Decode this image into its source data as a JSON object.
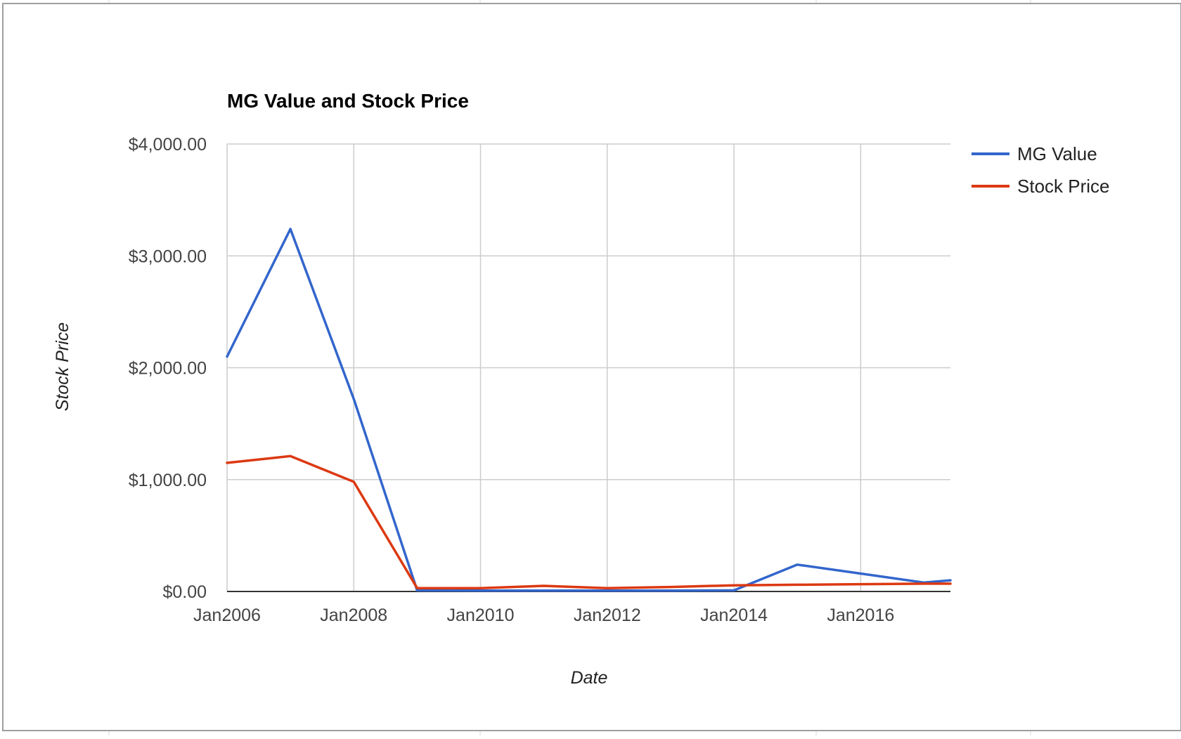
{
  "chart_data": {
    "type": "line",
    "title": "MG Value and Stock Price",
    "xlabel": "Date",
    "ylabel": "Stock Price",
    "x": [
      "2006-01",
      "2007-01",
      "2008-01",
      "2009-01",
      "2010-01",
      "2011-01",
      "2012-01",
      "2013-01",
      "2014-01",
      "2015-01",
      "2016-01",
      "2017-01",
      "2017-06"
    ],
    "xlim": [
      "2006-01",
      "2017-06"
    ],
    "ylim": [
      0,
      4000
    ],
    "y_ticks": [
      "$0.00",
      "$1,000.00",
      "$2,000.00",
      "$3,000.00",
      "$4,000.00"
    ],
    "x_ticks": [
      "Jan2006",
      "Jan2008",
      "Jan2010",
      "Jan2012",
      "Jan2014",
      "Jan2016"
    ],
    "series": [
      {
        "name": "MG Value",
        "color": "#3366cc",
        "values": [
          2100,
          3240,
          1720,
          10,
          8,
          8,
          8,
          8,
          10,
          240,
          160,
          80,
          100
        ]
      },
      {
        "name": "Stock Price",
        "color": "#dc3912",
        "values": [
          1150,
          1210,
          980,
          30,
          30,
          50,
          30,
          40,
          55,
          60,
          65,
          70,
          70
        ]
      }
    ],
    "grid": true,
    "legend_position": "right"
  }
}
